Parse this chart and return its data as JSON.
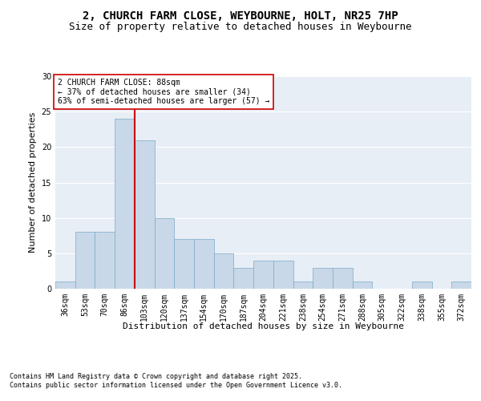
{
  "title_line1": "2, CHURCH FARM CLOSE, WEYBOURNE, HOLT, NR25 7HP",
  "title_line2": "Size of property relative to detached houses in Weybourne",
  "xlabel": "Distribution of detached houses by size in Weybourne",
  "ylabel": "Number of detached properties",
  "bar_color": "#c8d8e8",
  "bar_edgecolor": "#7aaac8",
  "vline_color": "#cc0000",
  "vline_x_index": 3,
  "annotation_title": "2 CHURCH FARM CLOSE: 88sqm",
  "annotation_line2": "← 37% of detached houses are smaller (34)",
  "annotation_line3": "63% of semi-detached houses are larger (57) →",
  "annotation_box_color": "#ffffff",
  "annotation_box_edgecolor": "#cc0000",
  "categories": [
    "36sqm",
    "53sqm",
    "70sqm",
    "86sqm",
    "103sqm",
    "120sqm",
    "137sqm",
    "154sqm",
    "170sqm",
    "187sqm",
    "204sqm",
    "221sqm",
    "238sqm",
    "254sqm",
    "271sqm",
    "288sqm",
    "305sqm",
    "322sqm",
    "338sqm",
    "355sqm",
    "372sqm"
  ],
  "bar_heights": [
    1,
    8,
    8,
    24,
    21,
    10,
    7,
    7,
    5,
    3,
    4,
    4,
    1,
    3,
    3,
    1,
    0,
    0,
    1,
    0,
    1
  ],
  "ylim": [
    0,
    30
  ],
  "yticks": [
    0,
    5,
    10,
    15,
    20,
    25,
    30
  ],
  "background_color": "#e8eef5",
  "footer_line1": "Contains HM Land Registry data © Crown copyright and database right 2025.",
  "footer_line2": "Contains public sector information licensed under the Open Government Licence v3.0.",
  "title_fontsize": 10,
  "subtitle_fontsize": 9,
  "axis_label_fontsize": 8,
  "tick_fontsize": 7,
  "footer_fontsize": 6,
  "annotation_fontsize": 7,
  "ylabel_fontsize": 8
}
